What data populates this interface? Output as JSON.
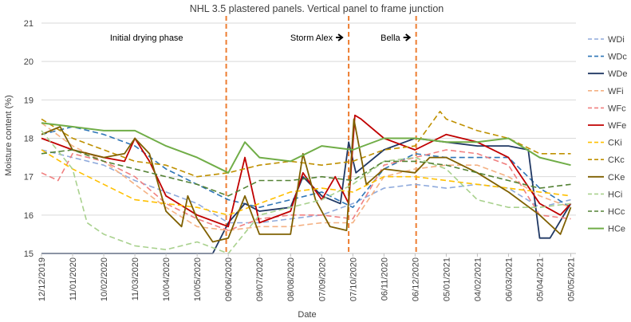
{
  "chart_data": {
    "type": "line",
    "title": "NHL 3.5 plastered panels. Vertical panel to  frame junction",
    "xlabel": "Date",
    "ylabel": "Moisture content (%)",
    "ylim": [
      15,
      21
    ],
    "yticks": [
      "15",
      "16",
      "17",
      "18",
      "19",
      "20",
      "21"
    ],
    "xtick_labels": [
      "12/12/2019",
      "11/01/2020",
      "10/02/2020",
      "11/03/2020",
      "10/04/2020",
      "10/05/2020",
      "09/06/2020",
      "09/07/2020",
      "08/08/2020",
      "07/09/2020",
      "07/10/2020",
      "06/11/2020",
      "06/12/2020",
      "05/01/2021",
      "04/02/2021",
      "06/03/2021",
      "05/04/2021",
      "05/05/2021"
    ],
    "xrange": [
      "2019-12-12",
      "2021-05-10"
    ],
    "grid": "horizontal",
    "legend": "right",
    "events": [
      {
        "date": "2020-06-07",
        "label": "Initial drying phase",
        "arrow": false
      },
      {
        "date": "2020-10-03",
        "label": "Storm Alex",
        "arrow": true
      },
      {
        "date": "2020-12-07",
        "label": "Bella",
        "arrow": true
      }
    ],
    "event_color": "#ED7D31",
    "series": [
      {
        "name": "WDi",
        "color": "#8FAADC",
        "dash": "7,4",
        "width": 1.6,
        "x": [
          "2019-12-12",
          "2020-01-11",
          "2020-02-10",
          "2020-03-11",
          "2020-04-10",
          "2020-05-10",
          "2020-06-09",
          "2020-07-09",
          "2020-08-08",
          "2020-09-07",
          "2020-10-07",
          "2020-11-06",
          "2020-12-06",
          "2021-01-05",
          "2021-02-04",
          "2021-03-06",
          "2021-04-05",
          "2021-05-05"
        ],
        "values": [
          17.7,
          17.5,
          17.3,
          16.9,
          16.6,
          16.3,
          15.8,
          15.8,
          15.9,
          16.0,
          16.3,
          16.7,
          16.8,
          16.7,
          16.8,
          16.7,
          16.2,
          16.4
        ]
      },
      {
        "name": "WDc",
        "color": "#2E75B6",
        "dash": "7,4",
        "width": 1.6,
        "x": [
          "2019-12-12",
          "2020-01-11",
          "2020-02-10",
          "2020-03-11",
          "2020-04-10",
          "2020-05-10",
          "2020-06-09",
          "2020-07-09",
          "2020-08-08",
          "2020-09-07",
          "2020-10-07",
          "2020-11-06",
          "2020-12-06",
          "2021-01-05",
          "2021-02-04",
          "2021-03-06",
          "2021-04-05",
          "2021-05-05"
        ],
        "values": [
          18.1,
          18.3,
          18.1,
          17.8,
          17.2,
          16.8,
          16.4,
          16.2,
          16.4,
          16.6,
          16.2,
          17.2,
          17.6,
          17.5,
          17.5,
          17.5,
          16.7,
          16.2
        ]
      },
      {
        "name": "WDe",
        "color": "#203864",
        "dash": "",
        "width": 1.8,
        "x": [
          "2019-12-12",
          "2020-01-11",
          "2020-02-10",
          "2020-03-11",
          "2020-04-10",
          "2020-05-10",
          "2020-05-25",
          "2020-06-09",
          "2020-06-25",
          "2020-07-09",
          "2020-08-08",
          "2020-08-20",
          "2020-09-07",
          "2020-09-25",
          "2020-10-03",
          "2020-10-10",
          "2020-11-06",
          "2020-12-06",
          "2021-01-05",
          "2021-02-04",
          "2021-03-06",
          "2021-03-25",
          "2021-04-05",
          "2021-04-15",
          "2021-05-05"
        ],
        "values": [
          15.0,
          15.0,
          15.0,
          15.0,
          15.0,
          15.0,
          15.0,
          15.8,
          16.3,
          16.1,
          16.2,
          17.0,
          16.5,
          16.3,
          17.9,
          17.1,
          17.7,
          18.0,
          17.9,
          17.8,
          17.8,
          17.7,
          15.4,
          15.4,
          16.3
        ]
      },
      {
        "name": "WFi",
        "color": "#F4B183",
        "dash": "7,4",
        "width": 1.6,
        "x": [
          "2019-12-12",
          "2020-01-11",
          "2020-02-10",
          "2020-03-11",
          "2020-04-10",
          "2020-05-10",
          "2020-06-09",
          "2020-07-09",
          "2020-08-08",
          "2020-09-07",
          "2020-10-07",
          "2020-11-06",
          "2020-12-06",
          "2021-01-05",
          "2021-02-04",
          "2021-03-06",
          "2021-04-05",
          "2021-05-05"
        ],
        "values": [
          18.4,
          17.8,
          17.4,
          16.8,
          16.2,
          15.7,
          15.6,
          15.7,
          15.7,
          15.8,
          15.8,
          17.0,
          17.2,
          17.3,
          17.3,
          17.0,
          16.5,
          16.2
        ]
      },
      {
        "name": "WFc",
        "color": "#F08080",
        "dash": "7,4",
        "width": 1.6,
        "x": [
          "2019-12-12",
          "2019-12-28",
          "2020-01-11",
          "2020-02-10",
          "2020-03-11",
          "2020-04-10",
          "2020-05-10",
          "2020-06-09",
          "2020-07-09",
          "2020-08-08",
          "2020-09-07",
          "2020-10-07",
          "2020-11-06",
          "2020-12-06",
          "2021-01-05",
          "2021-02-04",
          "2021-03-06",
          "2021-04-05",
          "2021-05-05"
        ],
        "values": [
          17.1,
          16.9,
          17.6,
          17.4,
          17.0,
          16.3,
          15.9,
          15.6,
          15.9,
          16.0,
          16.0,
          15.9,
          17.3,
          17.5,
          17.7,
          17.6,
          17.3,
          16.0,
          15.9
        ]
      },
      {
        "name": "WFe",
        "color": "#C00000",
        "dash": "",
        "width": 1.8,
        "x": [
          "2019-12-12",
          "2020-01-11",
          "2020-02-10",
          "2020-03-01",
          "2020-03-11",
          "2020-03-25",
          "2020-04-10",
          "2020-05-10",
          "2020-06-09",
          "2020-06-25",
          "2020-07-09",
          "2020-08-08",
          "2020-08-20",
          "2020-09-07",
          "2020-09-20",
          "2020-10-03",
          "2020-10-09",
          "2020-10-15",
          "2020-11-06",
          "2020-12-06",
          "2021-01-05",
          "2021-02-04",
          "2021-03-06",
          "2021-04-05",
          "2021-04-25",
          "2021-05-05"
        ],
        "values": [
          18.0,
          17.7,
          17.5,
          17.4,
          18.0,
          17.4,
          16.5,
          16.0,
          15.7,
          17.5,
          15.8,
          16.1,
          17.1,
          16.4,
          17.0,
          16.3,
          18.6,
          18.5,
          18.0,
          17.7,
          18.1,
          17.9,
          17.5,
          16.3,
          16.0,
          16.3
        ]
      },
      {
        "name": "CKi",
        "color": "#FFC000",
        "dash": "7,4",
        "width": 1.6,
        "x": [
          "2019-12-12",
          "2020-01-11",
          "2020-02-10",
          "2020-03-11",
          "2020-04-10",
          "2020-05-10",
          "2020-06-09",
          "2020-07-09",
          "2020-08-08",
          "2020-09-07",
          "2020-10-07",
          "2020-11-06",
          "2020-12-06",
          "2021-01-05",
          "2021-02-04",
          "2021-03-06",
          "2021-04-05",
          "2021-05-05"
        ],
        "values": [
          17.7,
          17.2,
          16.8,
          16.4,
          16.3,
          16.2,
          16.0,
          16.3,
          16.6,
          16.7,
          16.6,
          17.0,
          17.0,
          16.9,
          16.8,
          16.7,
          16.6,
          16.5
        ]
      },
      {
        "name": "CKc",
        "color": "#BF9000",
        "dash": "7,4",
        "width": 1.6,
        "x": [
          "2019-12-12",
          "2020-01-11",
          "2020-02-10",
          "2020-03-11",
          "2020-04-10",
          "2020-05-10",
          "2020-06-09",
          "2020-07-09",
          "2020-08-08",
          "2020-09-07",
          "2020-10-07",
          "2020-11-06",
          "2020-12-06",
          "2020-12-30",
          "2021-01-05",
          "2021-02-04",
          "2021-03-06",
          "2021-04-05",
          "2021-05-05"
        ],
        "values": [
          18.5,
          18.0,
          17.7,
          17.4,
          17.3,
          17.0,
          17.1,
          17.3,
          17.4,
          17.3,
          17.4,
          17.7,
          17.8,
          18.7,
          18.5,
          18.2,
          18.0,
          17.6,
          17.6
        ]
      },
      {
        "name": "CKe",
        "color": "#7F6000",
        "dash": "",
        "width": 1.8,
        "x": [
          "2019-12-12",
          "2019-12-30",
          "2020-01-11",
          "2020-02-10",
          "2020-03-01",
          "2020-03-11",
          "2020-03-25",
          "2020-04-10",
          "2020-04-25",
          "2020-05-01",
          "2020-05-10",
          "2020-05-25",
          "2020-06-09",
          "2020-06-25",
          "2020-07-09",
          "2020-08-08",
          "2020-08-20",
          "2020-09-01",
          "2020-09-15",
          "2020-10-01",
          "2020-10-08",
          "2020-10-20",
          "2020-11-06",
          "2020-12-06",
          "2020-12-20",
          "2021-01-05",
          "2021-02-04",
          "2021-03-06",
          "2021-04-05",
          "2021-04-25",
          "2021-05-05"
        ],
        "values": [
          18.1,
          18.3,
          17.7,
          17.5,
          17.6,
          18.0,
          17.6,
          16.1,
          15.7,
          16.5,
          15.9,
          15.3,
          15.4,
          16.5,
          15.5,
          15.5,
          17.6,
          16.4,
          15.7,
          15.6,
          18.5,
          16.8,
          17.2,
          17.1,
          17.5,
          17.5,
          17.1,
          16.6,
          16.0,
          15.5,
          16.2
        ]
      },
      {
        "name": "HCi",
        "color": "#A9D18E",
        "dash": "7,4",
        "width": 1.6,
        "x": [
          "2019-12-12",
          "2020-01-11",
          "2020-01-25",
          "2020-02-10",
          "2020-03-11",
          "2020-04-10",
          "2020-05-10",
          "2020-06-09",
          "2020-07-09",
          "2020-08-08",
          "2020-09-07",
          "2020-10-07",
          "2020-11-06",
          "2020-12-06",
          "2021-01-05",
          "2021-02-04",
          "2021-03-06",
          "2021-04-05",
          "2021-05-05"
        ],
        "values": [
          18.2,
          17.2,
          15.8,
          15.5,
          15.2,
          15.1,
          15.3,
          15.0,
          16.0,
          16.2,
          16.4,
          16.8,
          17.4,
          17.5,
          17.2,
          16.4,
          16.2,
          16.2,
          16.3
        ]
      },
      {
        "name": "HCc",
        "color": "#548235",
        "dash": "7,4",
        "width": 1.6,
        "x": [
          "2019-12-12",
          "2020-01-11",
          "2020-02-10",
          "2020-03-11",
          "2020-04-10",
          "2020-05-10",
          "2020-06-09",
          "2020-07-09",
          "2020-08-08",
          "2020-09-07",
          "2020-10-07",
          "2020-11-06",
          "2020-12-06",
          "2021-01-05",
          "2021-02-04",
          "2021-03-06",
          "2021-04-05",
          "2021-05-05"
        ],
        "values": [
          17.6,
          17.7,
          17.4,
          17.2,
          17.0,
          16.8,
          16.5,
          16.9,
          16.9,
          17.0,
          16.9,
          17.4,
          17.4,
          17.3,
          17.1,
          16.9,
          16.7,
          16.8
        ]
      },
      {
        "name": "HCe",
        "color": "#70AD47",
        "dash": "",
        "width": 2.0,
        "x": [
          "2019-12-12",
          "2020-01-11",
          "2020-02-10",
          "2020-03-11",
          "2020-04-10",
          "2020-05-10",
          "2020-06-09",
          "2020-06-25",
          "2020-07-09",
          "2020-08-08",
          "2020-09-07",
          "2020-10-07",
          "2020-11-06",
          "2020-12-06",
          "2021-01-05",
          "2021-02-04",
          "2021-03-06",
          "2021-04-05",
          "2021-05-05"
        ],
        "values": [
          18.4,
          18.3,
          18.2,
          18.2,
          17.8,
          17.5,
          17.1,
          17.9,
          17.5,
          17.4,
          17.8,
          17.7,
          18.0,
          18.0,
          17.9,
          17.9,
          18.0,
          17.5,
          17.3
        ]
      }
    ]
  }
}
